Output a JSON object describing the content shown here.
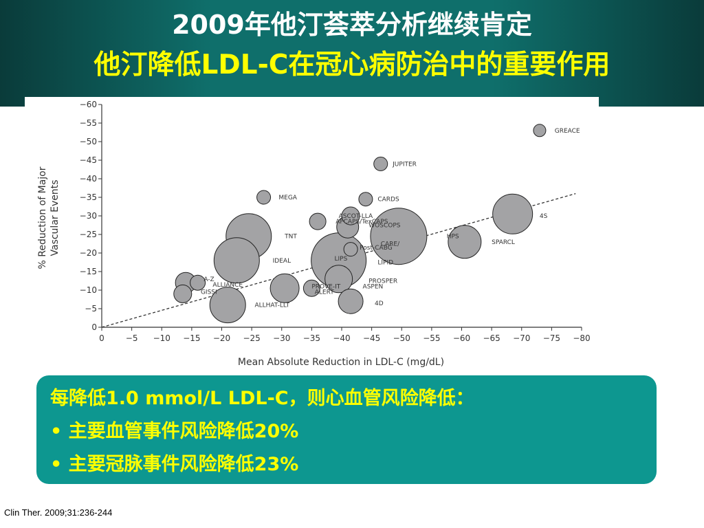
{
  "header": {
    "title_line1": "2009年他汀荟萃分析继续肯定",
    "title_line2": "他汀降低LDL-C在冠心病防治中的重要作用"
  },
  "chart_data": {
    "type": "scatter",
    "xlabel": "Mean Absolute Reduction in LDL-C (mg/dL)",
    "ylabel_line1": "% Reduction of Major",
    "ylabel_line2": "Vascular Events",
    "xlim": [
      0,
      -80
    ],
    "ylim": [
      0,
      -60
    ],
    "x_ticks": [
      "0",
      "−5",
      "−10",
      "−15",
      "−20",
      "−25",
      "−30",
      "−35",
      "−40",
      "−45",
      "−50",
      "−55",
      "−60",
      "−65",
      "−70",
      "−75",
      "−80"
    ],
    "y_ticks": [
      "0",
      "−5",
      "−10",
      "−15",
      "−20",
      "−25",
      "−30",
      "−35",
      "−40",
      "−45",
      "−50",
      "−55",
      "−60"
    ],
    "points": [
      {
        "label": "GREACE",
        "x": -73,
        "y": -53,
        "r": 9,
        "lx": -75.5,
        "ly": -53
      },
      {
        "label": "JUPITER",
        "x": -46.5,
        "y": -44,
        "r": 10,
        "lx": -48.5,
        "ly": -44
      },
      {
        "label": "MEGA",
        "x": -27,
        "y": -35,
        "r": 10,
        "lx": -29.5,
        "ly": -35
      },
      {
        "label": "CARDS",
        "x": -44,
        "y": -34.5,
        "r": 10,
        "lx": -46,
        "ly": -34.5
      },
      {
        "label": "ASCOT-LLA",
        "x": -41.5,
        "y": -30,
        "r": 13,
        "lx": -39.5,
        "ly": -30
      },
      {
        "label": "AFCAPS/TexCAPS",
        "x": -36,
        "y": -28.5,
        "r": 12,
        "lx": -39,
        "ly": -28.5
      },
      {
        "label": "WOSCOPS",
        "x": -41,
        "y": -27,
        "r": 16,
        "lx": -44.5,
        "ly": -27.5
      },
      {
        "label": "TNT",
        "x": -24.5,
        "y": -24.5,
        "r": 33,
        "lx": -30.5,
        "ly": -24.5
      },
      {
        "label": "4S",
        "x": -68.5,
        "y": -30.5,
        "r": 29,
        "lx": -73,
        "ly": -30
      },
      {
        "label": "HPS",
        "x": -49.5,
        "y": -24.5,
        "r": 41,
        "lx": -57.5,
        "ly": -24.5
      },
      {
        "label": "SPARCL",
        "x": -60.5,
        "y": -23,
        "r": 24,
        "lx": -65,
        "ly": -23
      },
      {
        "label": "CARE/",
        "x": -41.5,
        "y": -21,
        "r": 10,
        "lx": -46.5,
        "ly": -22.5
      },
      {
        "label": "Post-CABG",
        "x": -41.5,
        "y": -21,
        "r": 10,
        "lx": -43,
        "ly": -21.5
      },
      {
        "label": "LIPS",
        "x": -39.5,
        "y": -18,
        "r": 40,
        "lx": -38.8,
        "ly": -18.5
      },
      {
        "label": "LIPID",
        "x": -39.5,
        "y": -18,
        "r": 40,
        "lx": -46,
        "ly": -17.5
      },
      {
        "label": "IDEAL",
        "x": -22.5,
        "y": -18,
        "r": 33,
        "lx": -28.5,
        "ly": -18
      },
      {
        "label": "PROSPER",
        "x": -39.5,
        "y": -13,
        "r": 20,
        "lx": -44.5,
        "ly": -12.5
      },
      {
        "label": "ASPEN",
        "x": -39.5,
        "y": -13,
        "r": 20,
        "lx": -43.5,
        "ly": -11
      },
      {
        "label": "PROVE-IT",
        "x": -35,
        "y": -10.5,
        "r": 12,
        "lx": -35,
        "ly": -11
      },
      {
        "label": "ALERT",
        "x": -30.5,
        "y": -10.5,
        "r": 21,
        "lx": -35.5,
        "ly": -9.5
      },
      {
        "label": "A-Z",
        "x": -14,
        "y": -12,
        "r": 15,
        "lx": -17,
        "ly": -13
      },
      {
        "label": "ALLIANCE",
        "x": -16,
        "y": -12,
        "r": 11,
        "lx": -18.5,
        "ly": -11.5
      },
      {
        "label": "GISSI",
        "x": -13.5,
        "y": -9,
        "r": 13,
        "lx": -16.5,
        "ly": -9.5
      },
      {
        "label": "ALLHAT-LLT",
        "x": -21,
        "y": -6,
        "r": 26,
        "lx": -25.5,
        "ly": -6
      },
      {
        "label": "4D",
        "x": -41.5,
        "y": -7,
        "r": 18,
        "lx": -45.5,
        "ly": -6.5
      }
    ],
    "trend_line": {
      "from": [
        0,
        0
      ],
      "to": [
        -79,
        -36
      ]
    }
  },
  "callout": {
    "line1": "每降低1.0 mmol/L LDL-C，则心血管风险降低：",
    "line2": "• 主要血管事件风险降低20%",
    "line3": "• 主要冠脉事件风险降低23%"
  },
  "citation": "Clin Ther. 2009;31:236-244",
  "colors": {
    "header_bg": "#0f6f6b",
    "title_line1": "#ffffff",
    "title_line2": "#ffff00",
    "callout_bg": "#0d9790",
    "callout_text": "#ffff00",
    "bubble_fill": "#a3a3a5",
    "bubble_stroke": "#222222"
  }
}
